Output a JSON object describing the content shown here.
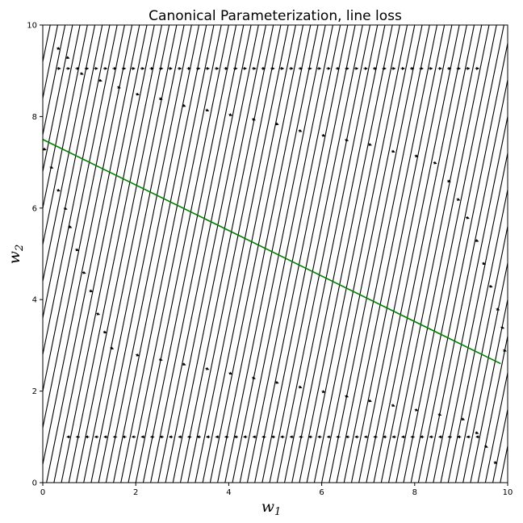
{
  "chart_data": {
    "type": "streamplot",
    "title": "Canonical Parameterization, line loss",
    "xlabel": "w",
    "xlabel_sub": "1",
    "ylabel": "w",
    "ylabel_sub": "2",
    "xlim": [
      0,
      10
    ],
    "ylim": [
      0,
      10
    ],
    "xticks": [
      0,
      2,
      4,
      6,
      8,
      10
    ],
    "yticks": [
      0,
      2,
      4,
      6,
      8,
      10
    ],
    "grid": false,
    "line_color": "#008000",
    "stream_color": "#000000",
    "optimum_line": {
      "x": [
        0,
        9.85
      ],
      "y": [
        7.5,
        2.6
      ]
    },
    "stream_direction": {
      "dx": 0.43,
      "dy": 2.15
    },
    "horizontal_streams": [
      {
        "y": 9.05,
        "x": [
          0.3,
          9.4
        ],
        "direction": "right"
      },
      {
        "y": 1.0,
        "x": [
          0.6,
          9.4
        ],
        "direction": "left"
      }
    ],
    "trajectory_points": [
      [
        0.3,
        9.5
      ],
      [
        0.5,
        9.3
      ],
      [
        0.8,
        8.95
      ],
      [
        1.2,
        8.8
      ],
      [
        1.6,
        8.65
      ],
      [
        2.0,
        8.5
      ],
      [
        2.5,
        8.4
      ],
      [
        3.0,
        8.25
      ],
      [
        3.5,
        8.15
      ],
      [
        4.0,
        8.05
      ],
      [
        4.5,
        7.95
      ],
      [
        5.0,
        7.85
      ],
      [
        5.5,
        7.7
      ],
      [
        6.0,
        7.6
      ],
      [
        6.5,
        7.5
      ],
      [
        7.0,
        7.4
      ],
      [
        7.5,
        7.25
      ],
      [
        8.0,
        7.15
      ],
      [
        8.4,
        7.0
      ],
      [
        8.7,
        6.6
      ],
      [
        8.9,
        6.2
      ],
      [
        9.1,
        5.8
      ],
      [
        9.3,
        5.3
      ],
      [
        9.45,
        4.8
      ],
      [
        9.6,
        4.3
      ],
      [
        9.75,
        3.8
      ],
      [
        9.85,
        3.4
      ],
      [
        9.9,
        2.9
      ],
      [
        0.0,
        7.3
      ],
      [
        0.15,
        6.9
      ],
      [
        0.3,
        6.4
      ],
      [
        0.45,
        6.0
      ],
      [
        0.55,
        5.6
      ],
      [
        0.7,
        5.1
      ],
      [
        0.85,
        4.6
      ],
      [
        1.0,
        4.2
      ],
      [
        1.15,
        3.7
      ],
      [
        1.3,
        3.3
      ],
      [
        1.45,
        2.95
      ],
      [
        2.0,
        2.8
      ],
      [
        2.5,
        2.7
      ],
      [
        3.0,
        2.6
      ],
      [
        3.5,
        2.5
      ],
      [
        4.0,
        2.4
      ],
      [
        4.5,
        2.3
      ],
      [
        5.0,
        2.2
      ],
      [
        5.5,
        2.1
      ],
      [
        6.0,
        2.0
      ],
      [
        6.5,
        1.9
      ],
      [
        7.0,
        1.8
      ],
      [
        7.5,
        1.7
      ],
      [
        8.0,
        1.6
      ],
      [
        8.5,
        1.5
      ],
      [
        9.0,
        1.4
      ],
      [
        9.3,
        1.1
      ],
      [
        9.5,
        0.8
      ],
      [
        9.7,
        0.45
      ]
    ]
  }
}
